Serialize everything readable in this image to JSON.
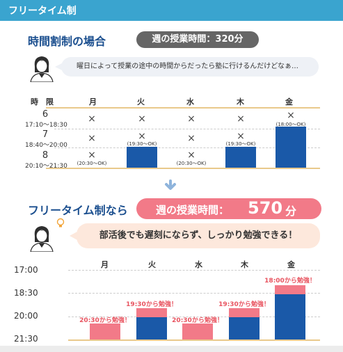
{
  "header": {
    "title": "フリータイム制"
  },
  "section1": {
    "title": "時間割制の場合",
    "hours_label": "週の授業時間：320分",
    "bubble": "曜日によって授業の途中の時間からだったら塾に行けるんだけどなぁ…",
    "table_head": "時　限",
    "days": [
      "月",
      "火",
      "水",
      "木",
      "金"
    ],
    "periods": [
      {
        "num": "6",
        "time": "17:10〜18:30"
      },
      {
        "num": "7",
        "time": "18:40〜20:00"
      },
      {
        "num": "8",
        "time": "20:10〜21:30"
      }
    ],
    "x_mark": "×",
    "notes": {
      "mon": "(20:30〜OK)",
      "tue": "(19:30〜OK)",
      "wed": "(20:30〜OK)",
      "thu": "(19:30〜OK)",
      "fri": "(18:00〜OK)"
    }
  },
  "section2": {
    "title": "フリータイム制なら",
    "hours_prefix": "週の授業時間：",
    "hours_value": "570",
    "hours_unit": "分",
    "bubble": "部活後でも遅刻にならず、しっかり勉強できる！",
    "days": [
      "月",
      "火",
      "水",
      "木",
      "金"
    ],
    "times": [
      "17:00",
      "18:30",
      "20:00",
      "21:30"
    ],
    "labels": {
      "mon": "20:30から勉強！",
      "tue": "19:30から勉強！",
      "wed": "20:30から勉強！",
      "thu": "19:30から勉強！",
      "fri": "18:00から勉強！"
    }
  },
  "colors": {
    "header": "#3aa4cf",
    "blue": "#1a59a8",
    "pink": "#f27a88",
    "gold": "#e9c98b"
  },
  "icons": [
    "student-girl-icon",
    "lightbulb-icon",
    "down-arrow-icon"
  ]
}
